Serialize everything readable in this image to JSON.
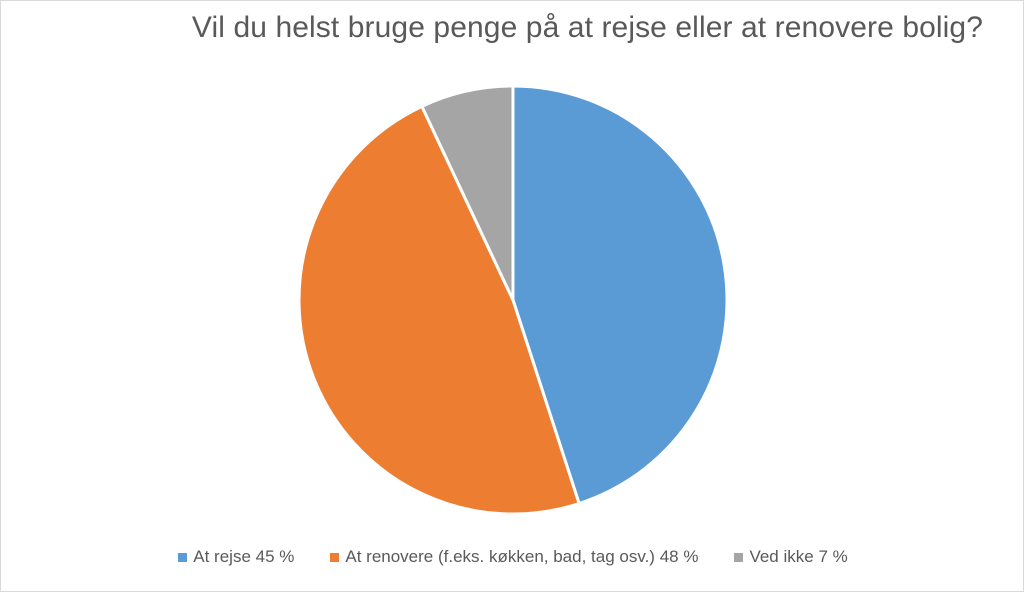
{
  "chart_data": {
    "type": "pie",
    "title": "Vil du helst bruge penge på at rejse eller at renovere bolig?",
    "legend_position": "bottom",
    "slices": [
      {
        "label": "At rejse 45 %",
        "value": 45,
        "color": "#5b9bd5"
      },
      {
        "label": "At renovere (f.eks. køkken, bad, tag osv.) 48 %",
        "value": 48,
        "color": "#ed7d31"
      },
      {
        "label": "Ved ikke 7 %",
        "value": 7,
        "color": "#a5a5a5"
      }
    ]
  }
}
